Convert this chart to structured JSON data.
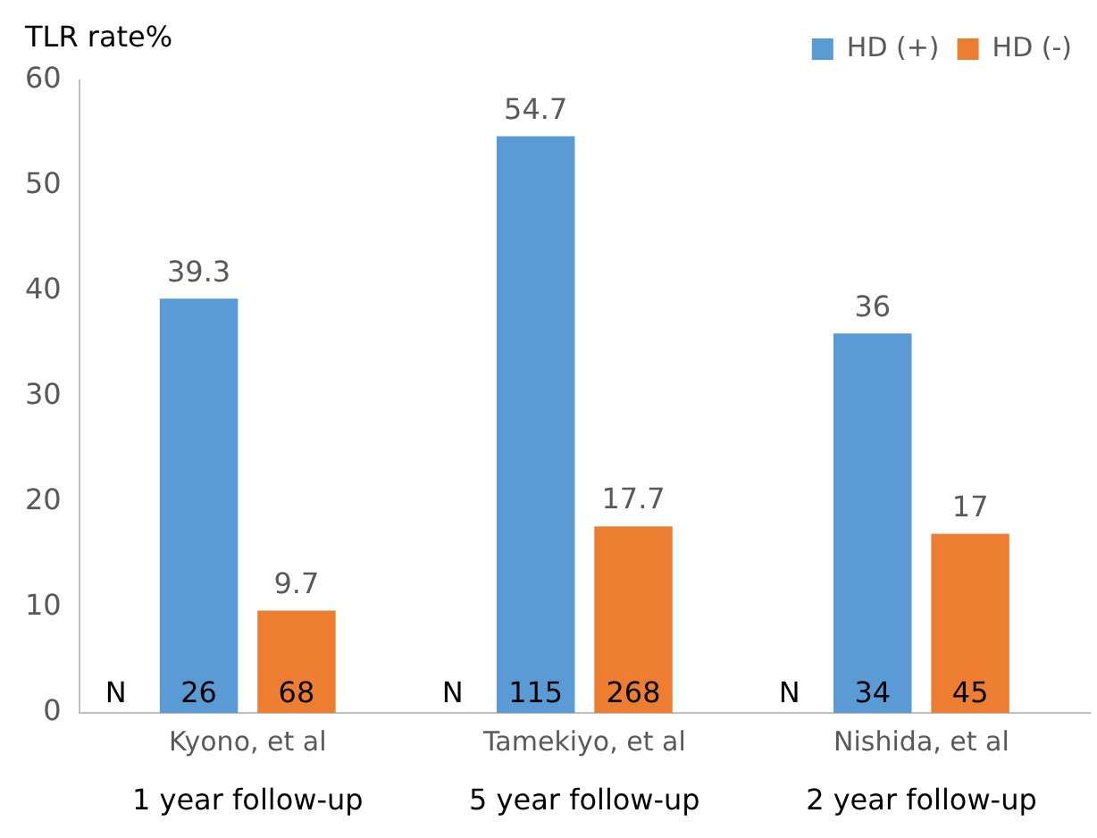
{
  "chart_data": {
    "type": "bar",
    "ylabel": "TLR rate%",
    "categories": [
      "Kyono, et al",
      "Tamekiyo, et al",
      "Nishida, et al"
    ],
    "series": [
      {
        "name": "HD (+)",
        "color": "#5b9bd5",
        "values": [
          39.3,
          54.7,
          36
        ]
      },
      {
        "name": "HD (-)",
        "color": "#ed7d31",
        "values": [
          9.7,
          17.7,
          17
        ]
      }
    ],
    "ylim": [
      0,
      60
    ],
    "yticks": [
      0,
      10,
      20,
      30,
      40,
      50,
      60
    ],
    "grid": false,
    "legend": "top right",
    "data_labels": true,
    "annotations": [
      "N",
      "26",
      "68",
      "N",
      "115",
      "268",
      "N",
      "34",
      "45",
      "1 year follow-up",
      "5 year follow-up",
      "2 year follow-up"
    ]
  }
}
